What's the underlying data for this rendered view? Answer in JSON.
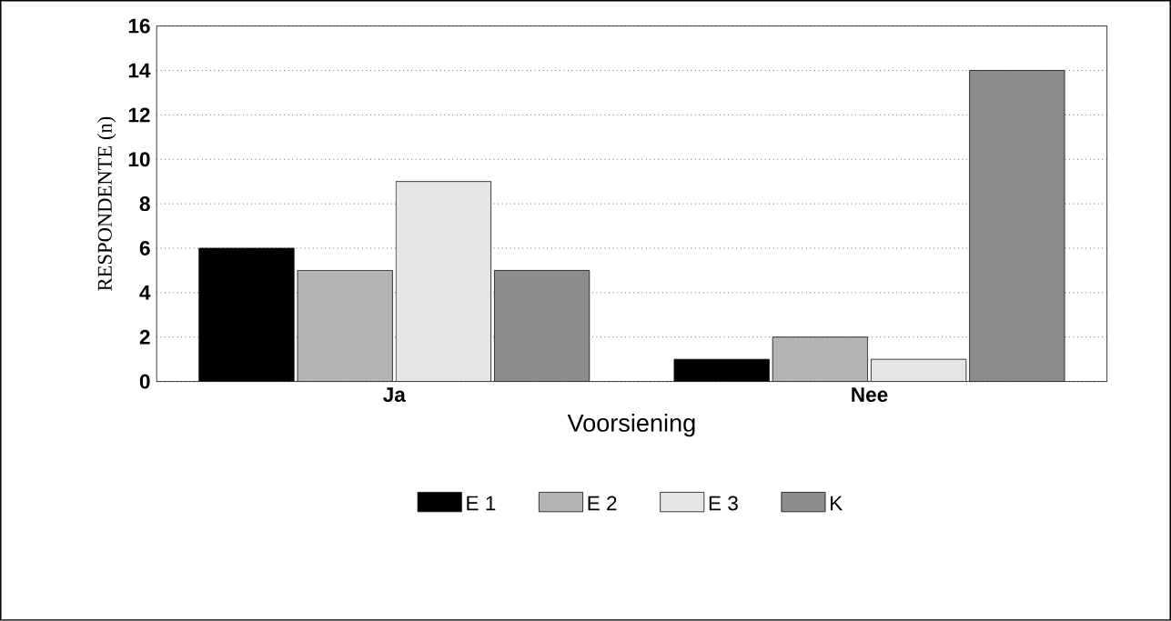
{
  "chart_data": {
    "type": "bar",
    "xlabel": "Voorsiening",
    "ylabel": "RESPONDENTE (n)",
    "categories": [
      "Ja",
      "Nee"
    ],
    "series": [
      {
        "name": "E 1",
        "color": "#000000",
        "values": [
          6,
          1
        ]
      },
      {
        "name": "E 2",
        "color": "#b4b4b4",
        "values": [
          5,
          2
        ]
      },
      {
        "name": "E 3",
        "color": "#e6e6e6",
        "values": [
          9,
          1
        ]
      },
      {
        "name": "K",
        "color": "#8c8c8c",
        "values": [
          5,
          14
        ]
      }
    ],
    "ylim": [
      0,
      16
    ],
    "yticks": [
      0,
      2,
      4,
      6,
      8,
      10,
      12,
      14,
      16
    ],
    "grid": "y",
    "legend": "bottom"
  }
}
